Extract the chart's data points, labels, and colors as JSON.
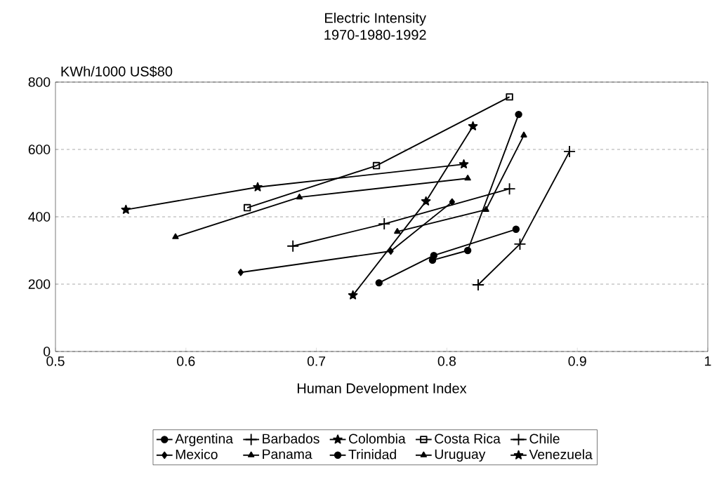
{
  "chart_data": {
    "type": "line",
    "title": "Electric Intensity",
    "subtitle": "1970-1980-1992",
    "xlabel": "Human Development Index",
    "ylabel": "KWh/1000 US$80",
    "xlim": [
      0.5,
      1
    ],
    "xticks": [
      0.5,
      0.6,
      0.7,
      0.8,
      0.9,
      1
    ],
    "ylim": [
      0,
      800
    ],
    "yticks": [
      0,
      200,
      400,
      600,
      800
    ],
    "grid": "y",
    "legend": "bottom",
    "line_style": "solid",
    "series": [
      {
        "name": "Argentina",
        "color": "#000000",
        "marker": "circle",
        "x": [
          0.748,
          0.79,
          0.853
        ],
        "values": [
          204,
          285,
          363
        ]
      },
      {
        "name": "Barbados",
        "color": "#000000",
        "marker": "cross",
        "x": [
          0.824,
          0.856,
          0.894
        ],
        "values": [
          198,
          319,
          594
        ]
      },
      {
        "name": "Colombia",
        "color": "#000000",
        "marker": "star",
        "x": [
          0.554,
          0.655,
          0.813
        ],
        "values": [
          421,
          488,
          556
        ]
      },
      {
        "name": "Costa Rica",
        "color": "#000000",
        "marker": "square",
        "x": [
          0.647,
          0.746,
          0.848
        ],
        "values": [
          427,
          552,
          756
        ]
      },
      {
        "name": "Chile",
        "color": "#000000",
        "marker": "cross",
        "x": [
          0.682,
          0.752,
          0.848
        ],
        "values": [
          313,
          379,
          483
        ]
      },
      {
        "name": "Mexico",
        "color": "#000000",
        "marker": "diamond",
        "x": [
          0.642,
          0.757,
          0.804
        ],
        "values": [
          235,
          298,
          444
        ]
      },
      {
        "name": "Panama",
        "color": "#000000",
        "marker": "triangle",
        "x": [
          0.592,
          0.687,
          0.816
        ],
        "values": [
          340,
          458,
          514
        ]
      },
      {
        "name": "Trinidad",
        "color": "#000000",
        "marker": "circle",
        "x": [
          0.789,
          0.816,
          0.855
        ],
        "values": [
          271,
          300,
          704
        ]
      },
      {
        "name": "Uruguay",
        "color": "#000000",
        "marker": "triangle",
        "x": [
          0.762,
          0.83,
          0.859
        ],
        "values": [
          356,
          421,
          642
        ]
      },
      {
        "name": "Venezuela",
        "color": "#000000",
        "marker": "star",
        "x": [
          0.728,
          0.784,
          0.82
        ],
        "values": [
          167,
          446,
          669
        ]
      }
    ]
  }
}
